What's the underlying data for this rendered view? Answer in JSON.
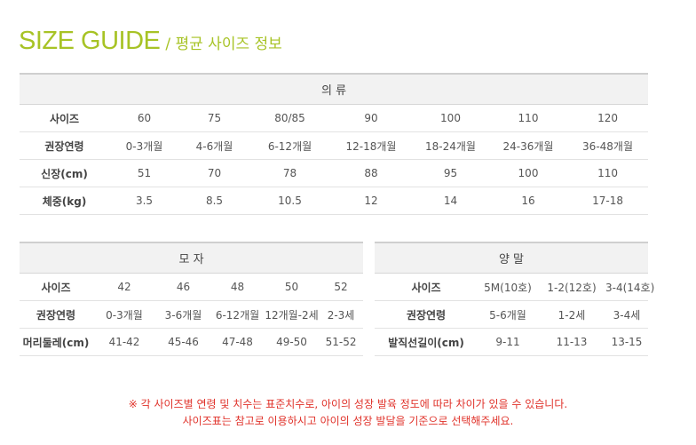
{
  "title": {
    "en": "SIZE GUIDE",
    "ko": "/ 평균 사이즈 정보"
  },
  "colors": {
    "accent": "#a7c325",
    "notice": "#e0322a"
  },
  "clothing": {
    "header": "의 류",
    "rows": [
      [
        "사이즈",
        "60",
        "75",
        "80/85",
        "90",
        "100",
        "110",
        "120"
      ],
      [
        "권장연령",
        "0-3개월",
        "4-6개월",
        "6-12개월",
        "12-18개월",
        "18-24개월",
        "24-36개월",
        "36-48개월"
      ],
      [
        "신장(cm)",
        "51",
        "70",
        "78",
        "88",
        "95",
        "100",
        "110"
      ],
      [
        "체중(kg)",
        "3.5",
        "8.5",
        "10.5",
        "12",
        "14",
        "16",
        "17-18"
      ]
    ]
  },
  "hat": {
    "header": "모 자",
    "rows": [
      [
        "사이즈",
        "42",
        "46",
        "48",
        "50",
        "52"
      ],
      [
        "권장연령",
        "0-3개월",
        "3-6개월",
        "6-12개월",
        "12개월-2세",
        "2-3세"
      ],
      [
        "머리둘레(cm)",
        "41-42",
        "45-46",
        "47-48",
        "49-50",
        "51-52"
      ]
    ]
  },
  "socks": {
    "header": "양 말",
    "rows": [
      [
        "사이즈",
        "5M(10호)",
        "1-2(12호)",
        "3-4(14호)"
      ],
      [
        "권장연령",
        "5-6개월",
        "1-2세",
        "3-4세"
      ],
      [
        "발직선길이(cm)",
        "9-11",
        "11-13",
        "13-15"
      ]
    ]
  },
  "notice": [
    "※ 각 사이즈별 연령 및 치수는 표준치수로, 아이의 성장 발육 정도에 따라 차이가 있을 수 있습니다.",
    "사이즈표는 참고로 이용하시고 아이의 성장 발달을 기준으로 선택해주세요."
  ]
}
